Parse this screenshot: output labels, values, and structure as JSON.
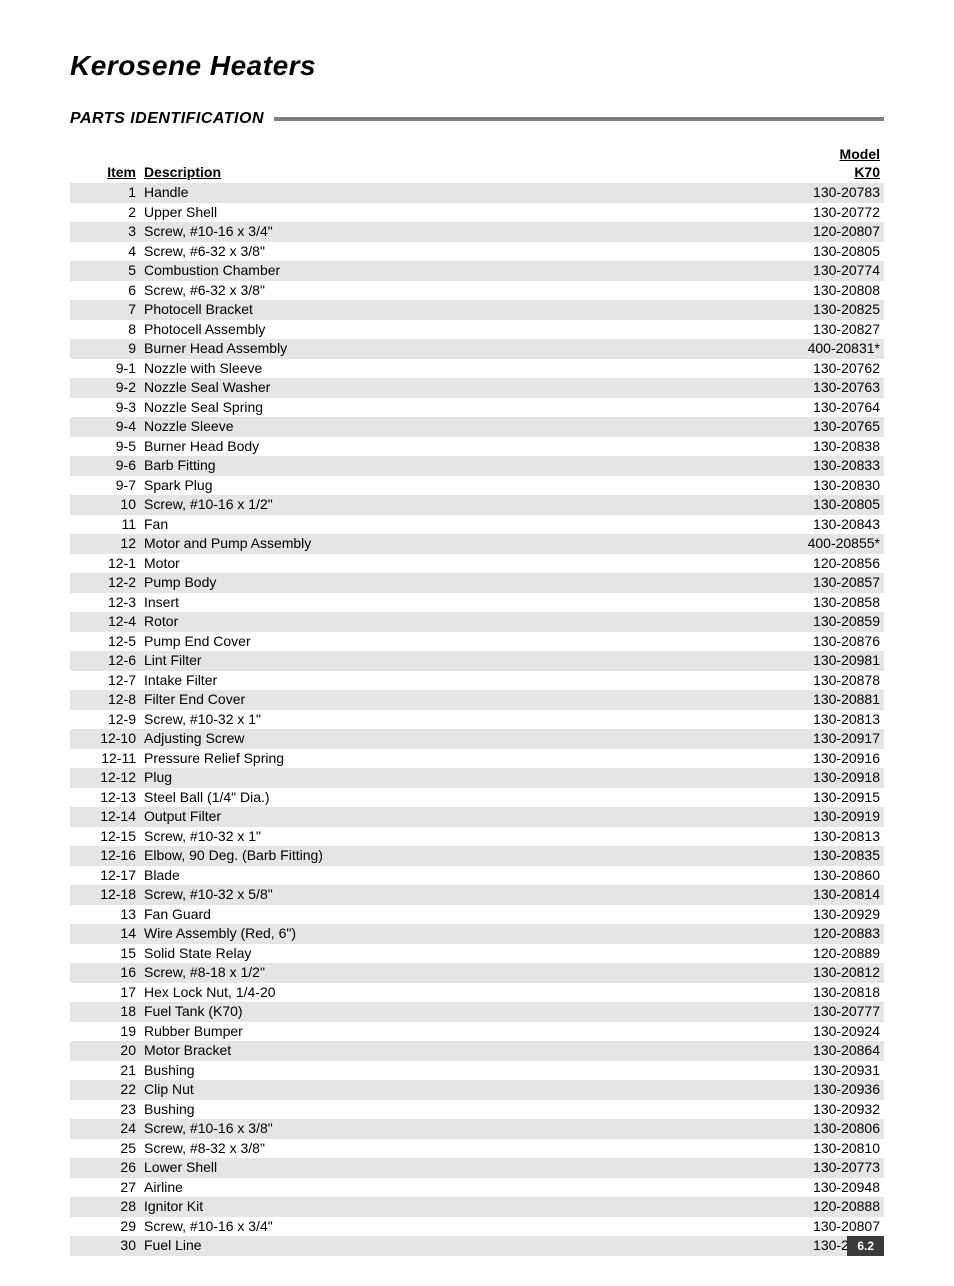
{
  "title": "Kerosene Heaters",
  "section_heading": "PARTS IDENTIFICATION",
  "columns": {
    "item": "Item",
    "description": "Description",
    "model_top": "Model",
    "model_bottom": "K70"
  },
  "shaded_row_bg": "#e5e5e5",
  "rule_color": "#808080",
  "footer_bg": "#3a3a3a",
  "footer_text_color": "#ffffff",
  "page_number": "6.2",
  "rows": [
    {
      "item": "1",
      "description": "Handle",
      "model": "130-20783",
      "shaded": true
    },
    {
      "item": "2",
      "description": "Upper Shell",
      "model": "130-20772",
      "shaded": false
    },
    {
      "item": "3",
      "description": "Screw, #10-16 x 3/4\"",
      "model": "120-20807",
      "shaded": true
    },
    {
      "item": "4",
      "description": "Screw, #6-32 x 3/8\"",
      "model": "130-20805",
      "shaded": false
    },
    {
      "item": "5",
      "description": "Combustion Chamber",
      "model": "130-20774",
      "shaded": true
    },
    {
      "item": "6",
      "description": "Screw, #6-32 x 3/8\"",
      "model": "130-20808",
      "shaded": false
    },
    {
      "item": "7",
      "description": "Photocell Bracket",
      "model": "130-20825",
      "shaded": true
    },
    {
      "item": "8",
      "description": "Photocell Assembly",
      "model": "130-20827",
      "shaded": false
    },
    {
      "item": "9",
      "description": "Burner Head Assembly",
      "model": "400-20831*",
      "shaded": true
    },
    {
      "item": "9-1",
      "description": "Nozzle with Sleeve",
      "model": "130-20762",
      "shaded": false
    },
    {
      "item": "9-2",
      "description": "Nozzle Seal Washer",
      "model": "130-20763",
      "shaded": true
    },
    {
      "item": "9-3",
      "description": "Nozzle Seal Spring",
      "model": "130-20764",
      "shaded": false
    },
    {
      "item": "9-4",
      "description": "Nozzle Sleeve",
      "model": "130-20765",
      "shaded": true
    },
    {
      "item": "9-5",
      "description": "Burner Head Body",
      "model": "130-20838",
      "shaded": false
    },
    {
      "item": "9-6",
      "description": "Barb Fitting",
      "model": "130-20833",
      "shaded": true
    },
    {
      "item": "9-7",
      "description": "Spark Plug",
      "model": "130-20830",
      "shaded": false
    },
    {
      "item": "10",
      "description": "Screw, #10-16 x 1/2\"",
      "model": "130-20805",
      "shaded": true
    },
    {
      "item": "11",
      "description": "Fan",
      "model": "130-20843",
      "shaded": false
    },
    {
      "item": "12",
      "description": "Motor and Pump Assembly",
      "model": "400-20855*",
      "shaded": true
    },
    {
      "item": "12-1",
      "description": "Motor",
      "model": "120-20856",
      "shaded": false
    },
    {
      "item": "12-2",
      "description": "Pump Body",
      "model": "130-20857",
      "shaded": true
    },
    {
      "item": "12-3",
      "description": "Insert",
      "model": "130-20858",
      "shaded": false
    },
    {
      "item": "12-4",
      "description": "Rotor",
      "model": "130-20859",
      "shaded": true
    },
    {
      "item": "12-5",
      "description": "Pump End Cover",
      "model": "130-20876",
      "shaded": false
    },
    {
      "item": "12-6",
      "description": "Lint Filter",
      "model": "130-20981",
      "shaded": true
    },
    {
      "item": "12-7",
      "description": "Intake Filter",
      "model": "130-20878",
      "shaded": false
    },
    {
      "item": "12-8",
      "description": "Filter End Cover",
      "model": "130-20881",
      "shaded": true
    },
    {
      "item": "12-9",
      "description": "Screw, #10-32 x 1\"",
      "model": "130-20813",
      "shaded": false
    },
    {
      "item": "12-10",
      "description": "Adjusting Screw",
      "model": "130-20917",
      "shaded": true
    },
    {
      "item": "12-11",
      "description": "Pressure Relief Spring",
      "model": "130-20916",
      "shaded": false
    },
    {
      "item": "12-12",
      "description": "Plug",
      "model": "130-20918",
      "shaded": true
    },
    {
      "item": "12-13",
      "description": "Steel Ball (1/4\" Dia.)",
      "model": "130-20915",
      "shaded": false
    },
    {
      "item": "12-14",
      "description": "Output Filter",
      "model": "130-20919",
      "shaded": true
    },
    {
      "item": "12-15",
      "description": "Screw, #10-32 x 1\"",
      "model": "130-20813",
      "shaded": false
    },
    {
      "item": "12-16",
      "description": "Elbow, 90 Deg. (Barb Fitting)",
      "model": "130-20835",
      "shaded": true
    },
    {
      "item": "12-17",
      "description": "Blade",
      "model": "130-20860",
      "shaded": false
    },
    {
      "item": "12-18",
      "description": "Screw, #10-32 x 5/8\"",
      "model": "130-20814",
      "shaded": true
    },
    {
      "item": "13",
      "description": "Fan Guard",
      "model": "130-20929",
      "shaded": false
    },
    {
      "item": "14",
      "description": "Wire Assembly (Red, 6\")",
      "model": "120-20883",
      "shaded": true
    },
    {
      "item": "15",
      "description": "Solid State Relay",
      "model": "120-20889",
      "shaded": false
    },
    {
      "item": "16",
      "description": "Screw, #8-18 x 1/2\"",
      "model": "130-20812",
      "shaded": true
    },
    {
      "item": "17",
      "description": "Hex Lock Nut, 1/4-20",
      "model": "130-20818",
      "shaded": false
    },
    {
      "item": "18",
      "description": "Fuel Tank (K70)",
      "model": "130-20777",
      "shaded": true
    },
    {
      "item": "19",
      "description": "Rubber Bumper",
      "model": "130-20924",
      "shaded": false
    },
    {
      "item": "20",
      "description": "Motor Bracket",
      "model": "130-20864",
      "shaded": true
    },
    {
      "item": "21",
      "description": "Bushing",
      "model": "130-20931",
      "shaded": false
    },
    {
      "item": "22",
      "description": "Clip Nut",
      "model": "130-20936",
      "shaded": true
    },
    {
      "item": "23",
      "description": "Bushing",
      "model": "130-20932",
      "shaded": false
    },
    {
      "item": "24",
      "description": "Screw, #10-16 x 3/8\"",
      "model": "130-20806",
      "shaded": true
    },
    {
      "item": "25",
      "description": "Screw, #8-32 x 3/8\"",
      "model": "130-20810",
      "shaded": false
    },
    {
      "item": "26",
      "description": "Lower Shell",
      "model": "130-20773",
      "shaded": true
    },
    {
      "item": "27",
      "description": "Airline",
      "model": "130-20948",
      "shaded": false
    },
    {
      "item": "28",
      "description": "Ignitor Kit",
      "model": "120-20888",
      "shaded": true
    },
    {
      "item": "29",
      "description": "Screw, #10-16 x 3/4\"",
      "model": "130-20807",
      "shaded": false
    },
    {
      "item": "30",
      "description": "Fuel Line",
      "model": "130-20949",
      "shaded": true
    }
  ]
}
